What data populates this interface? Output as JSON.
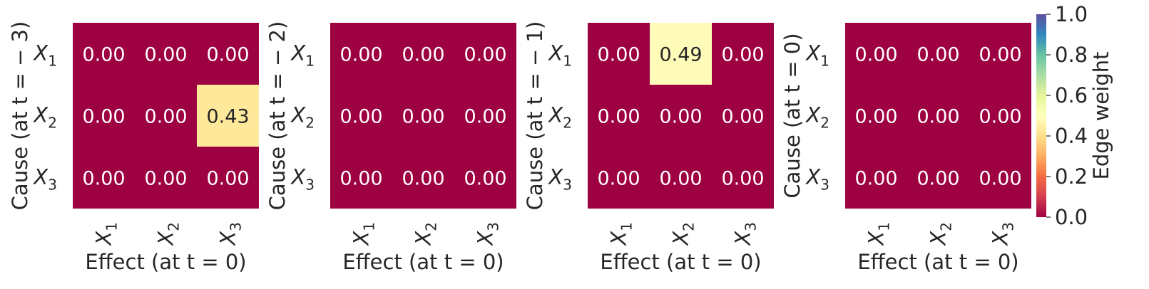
{
  "chart_data": [
    {
      "type": "heatmap",
      "ylabel": "Cause (at t = − 3)",
      "xlabel": "Effect (at t = 0)",
      "rows": [
        "X1",
        "X2",
        "X3"
      ],
      "cols": [
        "X1",
        "X2",
        "X3"
      ],
      "values": [
        [
          0.0,
          0.0,
          0.0
        ],
        [
          0.0,
          0.0,
          0.43
        ],
        [
          0.0,
          0.0,
          0.0
        ]
      ],
      "cell_labels": [
        [
          "0.00",
          "0.00",
          "0.00"
        ],
        [
          "0.00",
          "0.00",
          "0.43"
        ],
        [
          "0.00",
          "0.00",
          "0.00"
        ]
      ]
    },
    {
      "type": "heatmap",
      "ylabel": "Cause (at t = − 2)",
      "xlabel": "Effect (at t = 0)",
      "rows": [
        "X1",
        "X2",
        "X3"
      ],
      "cols": [
        "X1",
        "X2",
        "X3"
      ],
      "values": [
        [
          0.0,
          0.0,
          0.0
        ],
        [
          0.0,
          0.0,
          0.0
        ],
        [
          0.0,
          0.0,
          0.0
        ]
      ],
      "cell_labels": [
        [
          "0.00",
          "0.00",
          "0.00"
        ],
        [
          "0.00",
          "0.00",
          "0.00"
        ],
        [
          "0.00",
          "0.00",
          "0.00"
        ]
      ]
    },
    {
      "type": "heatmap",
      "ylabel": "Cause (at t = − 1)",
      "xlabel": "Effect (at t = 0)",
      "rows": [
        "X1",
        "X2",
        "X3"
      ],
      "cols": [
        "X1",
        "X2",
        "X3"
      ],
      "values": [
        [
          0.0,
          0.49,
          0.0
        ],
        [
          0.0,
          0.0,
          0.0
        ],
        [
          0.0,
          0.0,
          0.0
        ]
      ],
      "cell_labels": [
        [
          "0.00",
          "0.49",
          "0.00"
        ],
        [
          "0.00",
          "0.00",
          "0.00"
        ],
        [
          "0.00",
          "0.00",
          "0.00"
        ]
      ]
    },
    {
      "type": "heatmap",
      "ylabel": "Cause (at t = 0)",
      "xlabel": "Effect (at t = 0)",
      "rows": [
        "X1",
        "X2",
        "X3"
      ],
      "cols": [
        "X1",
        "X2",
        "X3"
      ],
      "values": [
        [
          0.0,
          0.0,
          0.0
        ],
        [
          0.0,
          0.0,
          0.0
        ],
        [
          0.0,
          0.0,
          0.0
        ]
      ],
      "cell_labels": [
        [
          "0.00",
          "0.00",
          "0.00"
        ],
        [
          "0.00",
          "0.00",
          "0.00"
        ],
        [
          "0.00",
          "0.00",
          "0.00"
        ]
      ]
    }
  ],
  "colorbar": {
    "label": "Edge weight",
    "range": [
      0.0,
      1.0
    ],
    "ticks": [
      "0.0",
      "0.2",
      "0.4",
      "0.6",
      "0.8",
      "1.0"
    ],
    "colormap": "Spectral",
    "stops": [
      "#9e0142",
      "#d53e4f",
      "#f46d43",
      "#fdae61",
      "#fee08b",
      "#ffffbf",
      "#e6f598",
      "#abdda4",
      "#66c2a5",
      "#3288bd",
      "#5e4fa2"
    ]
  },
  "colors": {
    "text_dark": "#262626",
    "text_light": "#ffffff"
  }
}
